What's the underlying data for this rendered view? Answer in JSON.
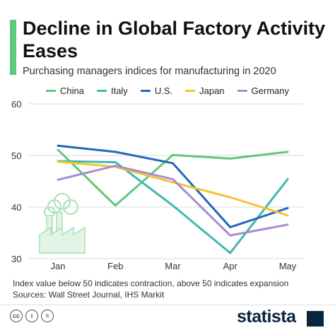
{
  "header": {
    "title": "Decline in Global Factory Activity Eases",
    "subtitle": "Purchasing managers indices for manufacturing in 2020"
  },
  "footnote": {
    "line1": "Index value below 50 indicates contraction, above 50 indicates expansion",
    "line2": "Sources: Wall Street Journal, IHS Markit"
  },
  "footer": {
    "brand": "statista",
    "cc_icons": [
      "cc-icon",
      "person-icon",
      "equals-icon"
    ]
  },
  "chart_data": {
    "type": "line",
    "categories": [
      "Jan",
      "Feb",
      "Mar",
      "Apr",
      "May"
    ],
    "ylim": [
      30,
      60
    ],
    "yticks": [
      30,
      40,
      50,
      60
    ],
    "grid": true,
    "legend_position": "top",
    "series": [
      {
        "name": "China",
        "color": "#5dc97a",
        "values": [
          51.1,
          40.3,
          50.1,
          49.4,
          50.7
        ]
      },
      {
        "name": "Italy",
        "color": "#3fb9ae",
        "values": [
          48.9,
          48.7,
          40.3,
          31.1,
          45.4
        ]
      },
      {
        "name": "U.S.",
        "color": "#2368b8",
        "values": [
          51.9,
          50.7,
          48.5,
          36.1,
          39.8
        ]
      },
      {
        "name": "Japan",
        "color": "#f3c431",
        "values": [
          48.8,
          47.8,
          44.8,
          41.9,
          38.4
        ]
      },
      {
        "name": "Germany",
        "color": "#a98bd1",
        "values": [
          45.3,
          48.0,
          45.4,
          34.5,
          36.6
        ]
      }
    ]
  }
}
